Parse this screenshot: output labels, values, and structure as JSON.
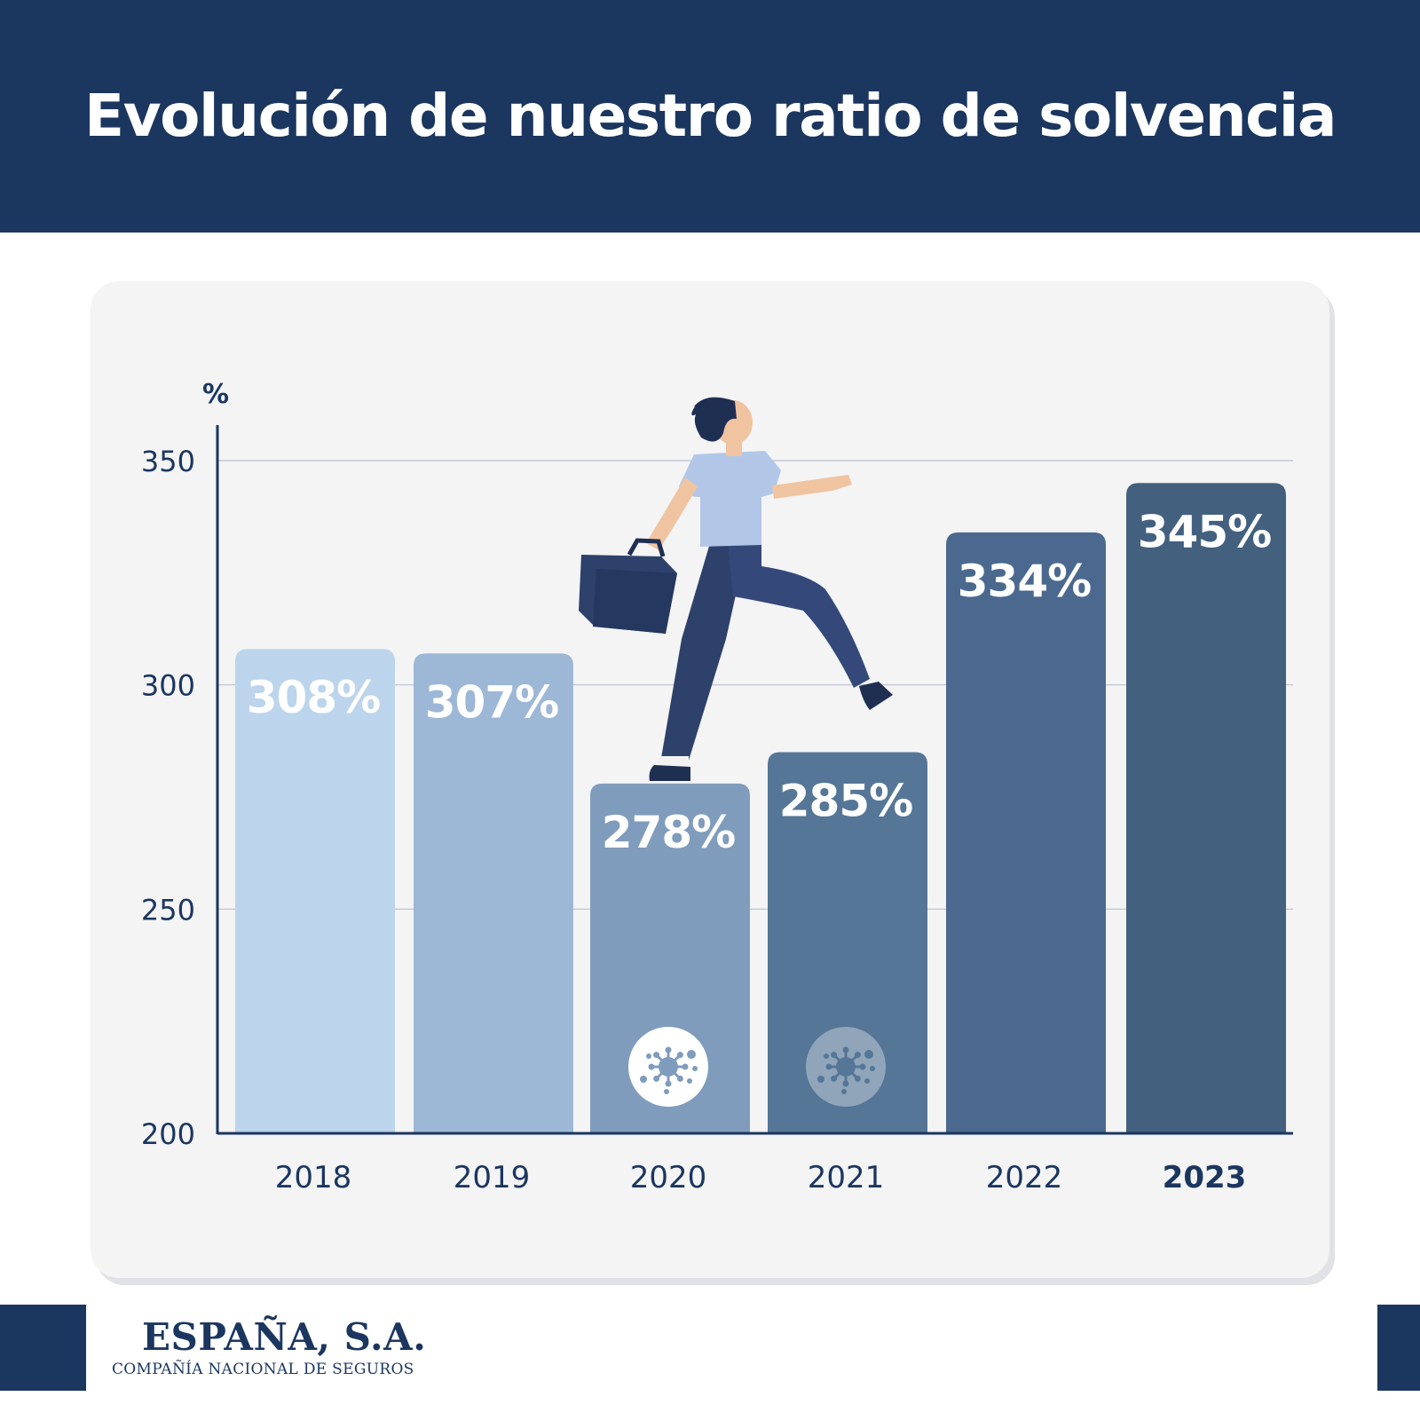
{
  "header": {
    "title": "Evolución de nuestro ratio de solvencia"
  },
  "chart_data": {
    "type": "bar",
    "title": "Evolución de nuestro ratio de solvencia",
    "ylabel": "%",
    "xlabel": "",
    "ylim": [
      200,
      350
    ],
    "y_ticks": [
      200,
      250,
      300,
      350
    ],
    "grid": true,
    "categories": [
      "2018",
      "2019",
      "2020",
      "2021",
      "2022",
      "2023"
    ],
    "values": [
      308,
      307,
      278,
      285,
      334,
      345
    ],
    "data_labels": [
      "308%",
      "307%",
      "278%",
      "285%",
      "334%",
      "345%"
    ],
    "bar_colors": [
      "#bcd5ec",
      "#9db8d6",
      "#7f9cbc",
      "#557696",
      "#4b698f",
      "#43607f"
    ],
    "highlighted_category": "2023",
    "annotations": [
      {
        "category": "2020",
        "icon": "virus-icon"
      },
      {
        "category": "2021",
        "icon": "virus-icon"
      }
    ],
    "illustration": "businessman-climbing-icon"
  },
  "footer": {
    "company_name": "ESPAÑA, S.A.",
    "company_subtitle": "COMPAÑÍA NACIONAL DE SEGUROS"
  },
  "colors": {
    "brand_navy": "#1b365f",
    "card_background": "#f4f4f5",
    "axis": "#1b365f",
    "gridline": "#b9bfd0"
  }
}
